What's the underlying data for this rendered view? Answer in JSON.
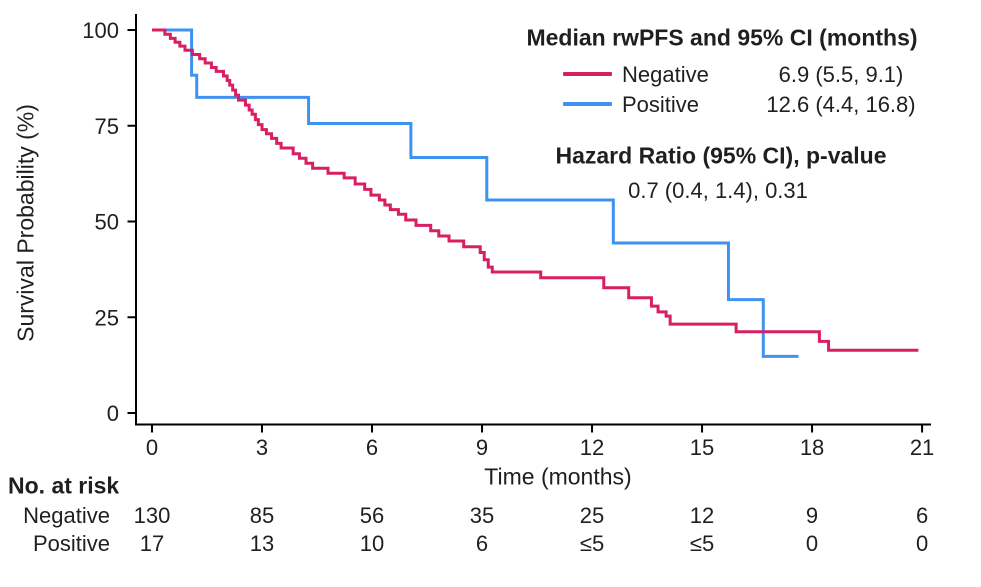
{
  "axes": {
    "x_label": "Time (months)",
    "y_label": "Survival Probability (%)"
  },
  "legend": {
    "title": "Median rwPFS and 95% CI (months)",
    "entries": [
      {
        "label": "Negative",
        "value": "6.9 (5.5, 9.1)",
        "color": "#D81F63"
      },
      {
        "label": "Positive",
        "value": "12.6 (4.4, 16.8)",
        "color": "#3E92F0"
      }
    ],
    "hazard_title": "Hazard Ratio (95% CI), p-value",
    "hazard_value": "0.7 (0.4, 1.4), 0.31"
  },
  "risk_table": {
    "title": "No. at risk",
    "times": [
      0,
      3,
      6,
      9,
      12,
      15,
      18,
      21
    ],
    "rows": [
      {
        "label": "Negative",
        "values": [
          "130",
          "85",
          "56",
          "35",
          "25",
          "12",
          "9",
          "6"
        ]
      },
      {
        "label": "Positive",
        "values": [
          "17",
          "13",
          "10",
          "6",
          "≤5",
          "≤5",
          "0",
          "0"
        ]
      }
    ]
  },
  "chart_data": {
    "type": "line",
    "variant": "kaplan_meier_step",
    "title": "",
    "xlabel": "Time (months)",
    "ylabel": "Survival Probability (%)",
    "xlim": [
      0,
      21
    ],
    "ylim": [
      0,
      100
    ],
    "x_ticks": [
      0,
      3,
      6,
      9,
      12,
      15,
      18,
      21
    ],
    "y_ticks": [
      0,
      25,
      50,
      75,
      100
    ],
    "grid": false,
    "legend_position": "top-right",
    "axis_color": "#000000",
    "series": [
      {
        "name": "Negative",
        "color": "#D81F63",
        "median_ci_months": "6.9 (5.5, 9.1)",
        "end": 20.9,
        "points": [
          [
            0,
            100
          ],
          [
            0.35,
            98.9
          ],
          [
            0.5,
            97.8
          ],
          [
            0.63,
            96.8
          ],
          [
            0.76,
            95.8
          ],
          [
            0.9,
            94.7
          ],
          [
            1.1,
            93.6
          ],
          [
            1.3,
            92.5
          ],
          [
            1.45,
            91.4
          ],
          [
            1.62,
            90.2
          ],
          [
            1.75,
            89.2
          ],
          [
            1.95,
            88.0
          ],
          [
            2.05,
            86.8
          ],
          [
            2.12,
            85.6
          ],
          [
            2.2,
            84.3
          ],
          [
            2.28,
            83.0
          ],
          [
            2.36,
            81.7
          ],
          [
            2.55,
            80.4
          ],
          [
            2.65,
            79.1
          ],
          [
            2.73,
            78.0
          ],
          [
            2.82,
            76.6
          ],
          [
            2.9,
            75.3
          ],
          [
            3.0,
            74.0
          ],
          [
            3.12,
            72.9
          ],
          [
            3.26,
            71.7
          ],
          [
            3.4,
            70.4
          ],
          [
            3.52,
            69.2
          ],
          [
            3.85,
            67.7
          ],
          [
            4.02,
            66.5
          ],
          [
            4.2,
            65.2
          ],
          [
            4.38,
            63.9
          ],
          [
            4.8,
            62.6
          ],
          [
            5.24,
            61.4
          ],
          [
            5.54,
            59.8
          ],
          [
            5.8,
            58.4
          ],
          [
            5.97,
            56.9
          ],
          [
            6.2,
            55.6
          ],
          [
            6.35,
            54.3
          ],
          [
            6.5,
            53.1
          ],
          [
            6.72,
            51.9
          ],
          [
            6.92,
            50.4
          ],
          [
            7.2,
            49.0
          ],
          [
            7.6,
            47.6
          ],
          [
            7.82,
            46.2
          ],
          [
            8.1,
            44.9
          ],
          [
            8.5,
            43.4
          ],
          [
            8.95,
            41.9
          ],
          [
            9.06,
            40.0
          ],
          [
            9.17,
            38.1
          ],
          [
            9.28,
            36.8
          ],
          [
            10.6,
            35.3
          ],
          [
            12.32,
            32.7
          ],
          [
            13.0,
            30.1
          ],
          [
            13.62,
            27.9
          ],
          [
            13.8,
            26.4
          ],
          [
            14.02,
            25.3
          ],
          [
            14.13,
            23.2
          ],
          [
            15.93,
            21.2
          ],
          [
            18.2,
            18.7
          ],
          [
            18.45,
            16.4
          ]
        ]
      },
      {
        "name": "Positive",
        "color": "#3E92F0",
        "median_ci_months": "12.6 (4.4, 16.8)",
        "end": 17.63,
        "points": [
          [
            0,
            100
          ],
          [
            1.08,
            88.2
          ],
          [
            1.22,
            82.4
          ],
          [
            4.27,
            75.6
          ],
          [
            7.06,
            66.7
          ],
          [
            9.13,
            55.6
          ],
          [
            12.58,
            44.4
          ],
          [
            15.72,
            29.6
          ],
          [
            16.67,
            14.8
          ]
        ]
      }
    ]
  }
}
